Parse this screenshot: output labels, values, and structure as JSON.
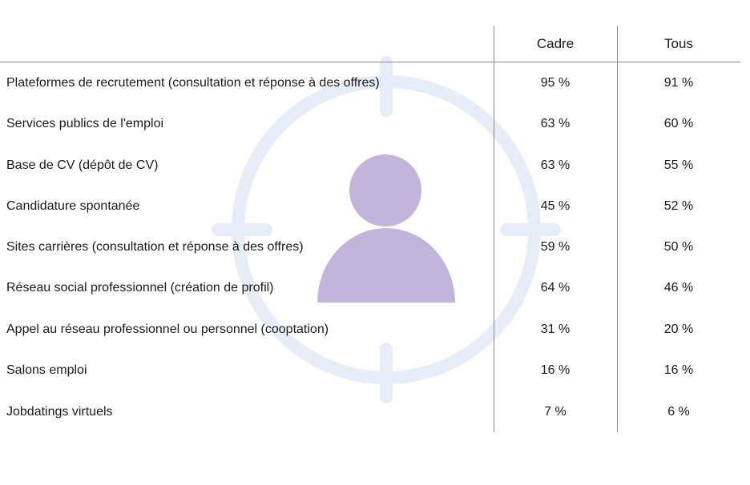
{
  "watermark": {
    "icon": "user-target-icon",
    "ring_color": "#e6edf8",
    "person_color": "#c3b4dc"
  },
  "table": {
    "columns": [
      "Cadre",
      "Tous"
    ],
    "rows": [
      {
        "label": "Plateformes de recrutement (consultation et réponse à des offres)",
        "cadre": "95 %",
        "tous": "91 %"
      },
      {
        "label": "Services publics de l'emploi",
        "cadre": "63 %",
        "tous": "60 %"
      },
      {
        "label": "Base de CV (dépôt de CV)",
        "cadre": "63 %",
        "tous": "55 %"
      },
      {
        "label": "Candidature spontanée",
        "cadre": "45 %",
        "tous": "52 %"
      },
      {
        "label": "Sites carrières (consultation et réponse à des offres)",
        "cadre": "59 %",
        "tous": "50 %"
      },
      {
        "label": "Réseau social professionnel (création de profil)",
        "cadre": "64 %",
        "tous": "46 %"
      },
      {
        "label": "Appel au réseau professionnel ou personnel (cooptation)",
        "cadre": "31 %",
        "tous": "20 %"
      },
      {
        "label": "Salons emploi",
        "cadre": "16 %",
        "tous": "16 %"
      },
      {
        "label": "Jobdatings virtuels",
        "cadre": "7 %",
        "tous": "6 %"
      }
    ]
  }
}
